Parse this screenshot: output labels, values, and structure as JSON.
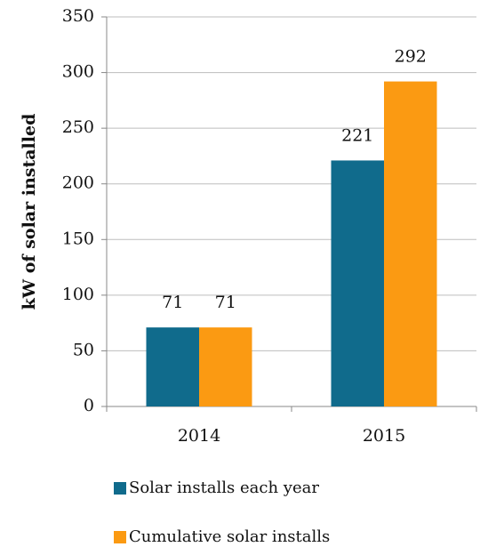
{
  "chart_data": {
    "type": "bar",
    "y_label": "kW of solar installed",
    "categories": [
      "2014",
      "2015"
    ],
    "series": [
      {
        "name": "Solar installs each year",
        "color": "#106b8c",
        "values": [
          71,
          221
        ]
      },
      {
        "name": "Cumulative solar installs",
        "color": "#fb9a12",
        "values": [
          71,
          292
        ]
      }
    ],
    "ylim": [
      0,
      350
    ],
    "yticks": [
      0,
      50,
      100,
      150,
      200,
      250,
      300,
      350
    ],
    "grid": true,
    "legend": "bottom",
    "data_labels": true
  }
}
